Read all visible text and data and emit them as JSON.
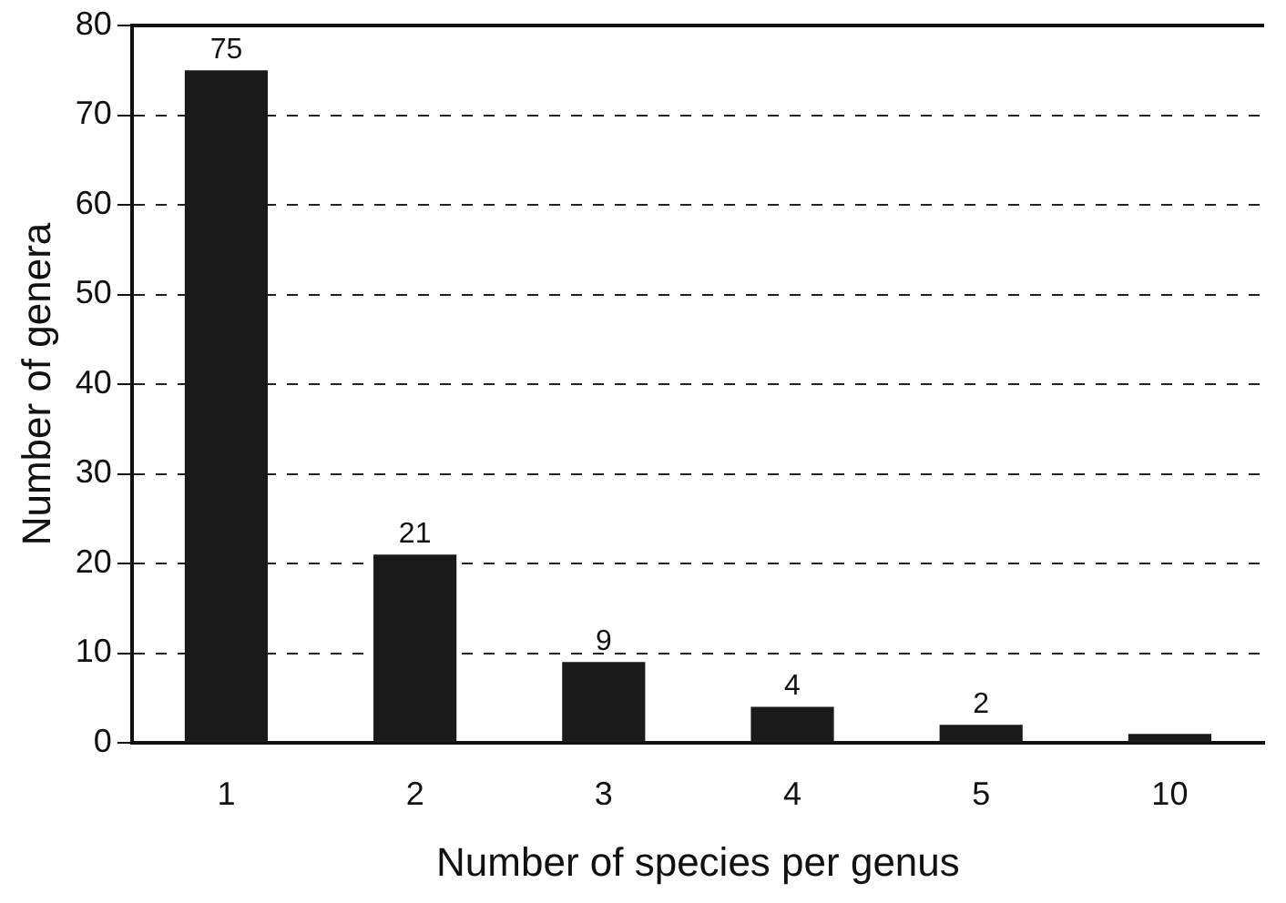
{
  "chart_data": {
    "type": "bar",
    "xlabel": "Number of species per genus",
    "ylabel": "Number of genera",
    "categories": [
      "1",
      "2",
      "3",
      "4",
      "5",
      "10"
    ],
    "values": [
      75,
      21,
      9,
      4,
      2,
      1
    ],
    "value_labels": [
      "75",
      "21",
      "9",
      "4",
      "2",
      null
    ],
    "color": "#1a1a1a",
    "ylim": [
      0,
      80
    ],
    "yticks": [
      0,
      10,
      20,
      30,
      40,
      50,
      60,
      70,
      80
    ],
    "grid": "y",
    "legend": false
  }
}
